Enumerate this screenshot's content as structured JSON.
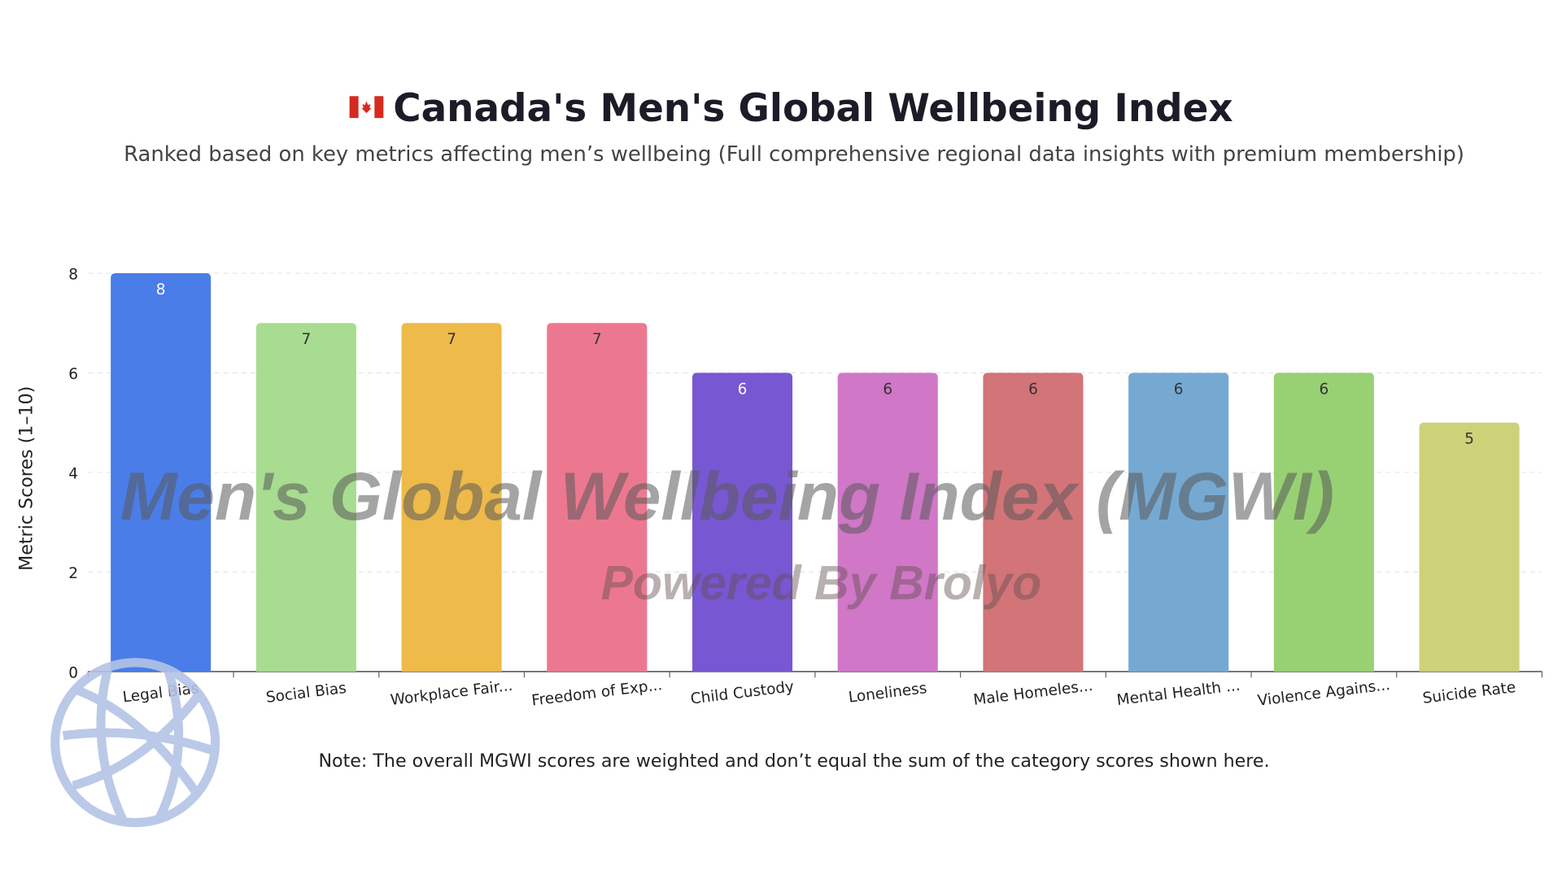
{
  "chart_data": {
    "type": "bar",
    "title": "Canada's Men's Global Wellbeing Index",
    "subtitle": "Ranked based on key metrics affecting men’s wellbeing (Full comprehensive regional data insights with premium membership)",
    "ylabel": "Metric Scores (1–10)",
    "xlabel": "",
    "ylim": [
      0,
      8
    ],
    "yticks": [
      "0",
      "2",
      "4",
      "6",
      "8"
    ],
    "grid": true,
    "categories": [
      "Legal Bias",
      "Social Bias",
      "Workplace Fair...",
      "Freedom of Exp...",
      "Child Custody",
      "Loneliness",
      "Male Homeles...",
      "Mental Health ...",
      "Violence Agains...",
      "Suicide Rate"
    ],
    "values": [
      8,
      7,
      7,
      7,
      6,
      6,
      6,
      6,
      6,
      5
    ],
    "colors": [
      "#4a7de8",
      "#a8dc90",
      "#eeba4a",
      "#ec7890",
      "#7857d2",
      "#d077c8",
      "#d27478",
      "#76a9d2",
      "#98d174",
      "#cdd178"
    ],
    "label_colors": [
      "#ffffff",
      "#333333",
      "#333333",
      "#333333",
      "#ffffff",
      "#333333",
      "#333333",
      "#333333",
      "#333333",
      "#333333"
    ],
    "note": "Note: The overall MGWI scores are weighted and don’t equal the sum of the category scores shown here."
  },
  "flag_icon": "canada-flag",
  "watermark": {
    "main": "Men's Global Wellbeing Index (MGWI)",
    "sub": "Powered By Brolyo",
    "logo_icon": "globe-icon"
  }
}
